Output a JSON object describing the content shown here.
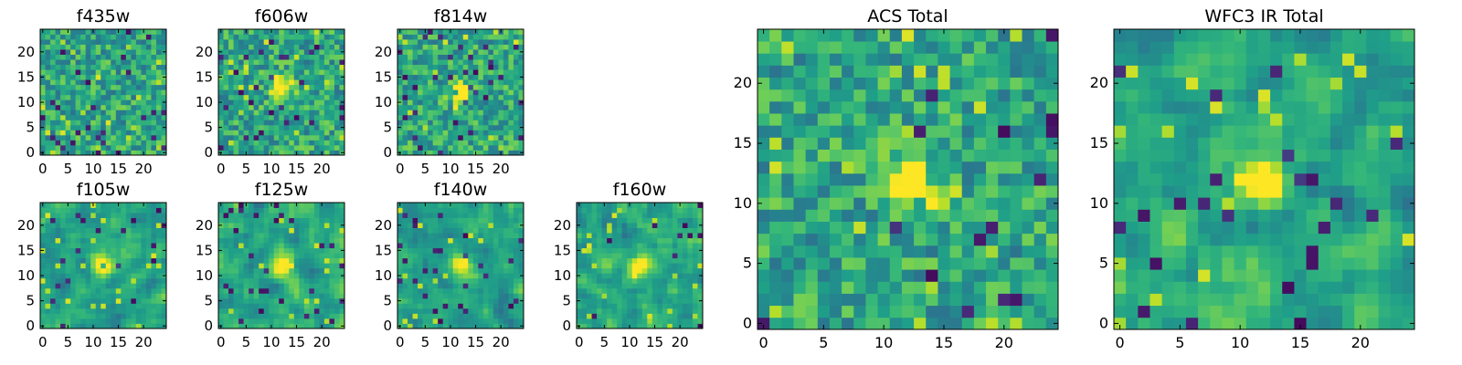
{
  "chart_data": [
    {
      "type": "heatmap",
      "title": "f435w",
      "size": [
        25,
        25
      ],
      "colormap": "viridis",
      "xticks": [
        0,
        5,
        10,
        15,
        20
      ],
      "yticks": [
        0,
        5,
        10,
        15,
        20
      ],
      "xlim": [
        -0.5,
        24.5
      ],
      "ylim": [
        -0.5,
        24.5
      ],
      "source_center": null,
      "noise": "high"
    },
    {
      "type": "heatmap",
      "title": "f606w",
      "size": [
        25,
        25
      ],
      "colormap": "viridis",
      "xticks": [
        0,
        5,
        10,
        15,
        20
      ],
      "yticks": [
        0,
        5,
        10,
        15,
        20
      ],
      "xlim": [
        -0.5,
        24.5
      ],
      "ylim": [
        -0.5,
        24.5
      ],
      "source_center": [
        12,
        13
      ],
      "noise": "high"
    },
    {
      "type": "heatmap",
      "title": "f814w",
      "size": [
        25,
        25
      ],
      "colormap": "viridis",
      "xticks": [
        0,
        5,
        10,
        15,
        20
      ],
      "yticks": [
        0,
        5,
        10,
        15,
        20
      ],
      "xlim": [
        -0.5,
        24.5
      ],
      "ylim": [
        -0.5,
        24.5
      ],
      "source_center": [
        12,
        12
      ],
      "noise": "high"
    },
    {
      "type": "heatmap",
      "title": "f105w",
      "size": [
        25,
        25
      ],
      "colormap": "viridis",
      "xticks": [
        0,
        5,
        10,
        15,
        20
      ],
      "yticks": [
        0,
        5,
        10,
        15,
        20
      ],
      "xlim": [
        -0.5,
        24.5
      ],
      "ylim": [
        -0.5,
        24.5
      ],
      "source_center": [
        12,
        12
      ],
      "noise": "smooth"
    },
    {
      "type": "heatmap",
      "title": "f125w",
      "size": [
        25,
        25
      ],
      "colormap": "viridis",
      "xticks": [
        0,
        5,
        10,
        15,
        20
      ],
      "yticks": [
        0,
        5,
        10,
        15,
        20
      ],
      "xlim": [
        -0.5,
        24.5
      ],
      "ylim": [
        -0.5,
        24.5
      ],
      "source_center": [
        12,
        12
      ],
      "noise": "smooth"
    },
    {
      "type": "heatmap",
      "title": "f140w",
      "size": [
        25,
        25
      ],
      "colormap": "viridis",
      "xticks": [
        0,
        5,
        10,
        15,
        20
      ],
      "yticks": [
        0,
        5,
        10,
        15,
        20
      ],
      "xlim": [
        -0.5,
        24.5
      ],
      "ylim": [
        -0.5,
        24.5
      ],
      "source_center": [
        12,
        12
      ],
      "noise": "smooth"
    },
    {
      "type": "heatmap",
      "title": "f160w",
      "size": [
        25,
        25
      ],
      "colormap": "viridis",
      "xticks": [
        0,
        5,
        10,
        15,
        20
      ],
      "yticks": [
        0,
        5,
        10,
        15,
        20
      ],
      "xlim": [
        -0.5,
        24.5
      ],
      "ylim": [
        -0.5,
        24.5
      ],
      "source_center": [
        12,
        12
      ],
      "noise": "smooth"
    },
    {
      "type": "heatmap",
      "title": "ACS Total",
      "size": [
        25,
        25
      ],
      "colormap": "viridis",
      "xticks": [
        0,
        5,
        10,
        15,
        20
      ],
      "yticks": [
        0,
        5,
        10,
        15,
        20
      ],
      "xlim": [
        -0.5,
        24.5
      ],
      "ylim": [
        -0.5,
        24.5
      ],
      "source_center": [
        12,
        12
      ],
      "noise": "medium"
    },
    {
      "type": "heatmap",
      "title": "WFC3 IR Total",
      "size": [
        25,
        25
      ],
      "colormap": "viridis",
      "xticks": [
        0,
        5,
        10,
        15,
        20
      ],
      "yticks": [
        0,
        5,
        10,
        15,
        20
      ],
      "xlim": [
        -0.5,
        24.5
      ],
      "ylim": [
        -0.5,
        24.5
      ],
      "source_center": [
        12,
        12
      ],
      "noise": "smooth"
    }
  ]
}
